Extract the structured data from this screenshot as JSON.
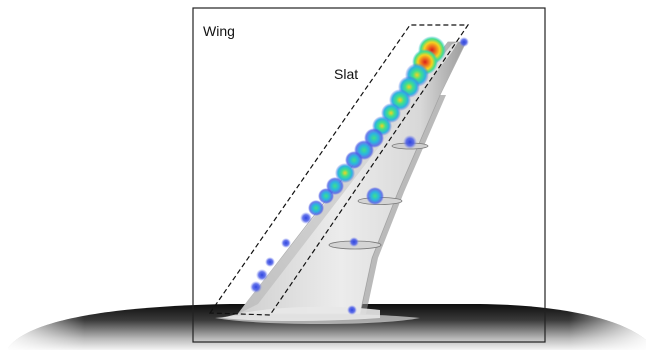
{
  "labels": {
    "wing": "Wing",
    "slat": "Slat"
  },
  "colors": {
    "frame": "#222222",
    "dashed_outline": "#111111",
    "surface_light": "#f2f2f2",
    "surface_dark": "#8c8c8c",
    "fuselage_dark": "#1a1a1a",
    "hot": "#e8312a",
    "warm": "#f5d31f",
    "mid": "#3fe08a",
    "cool": "#2bb5e0",
    "cold": "#4a5ce8"
  }
}
